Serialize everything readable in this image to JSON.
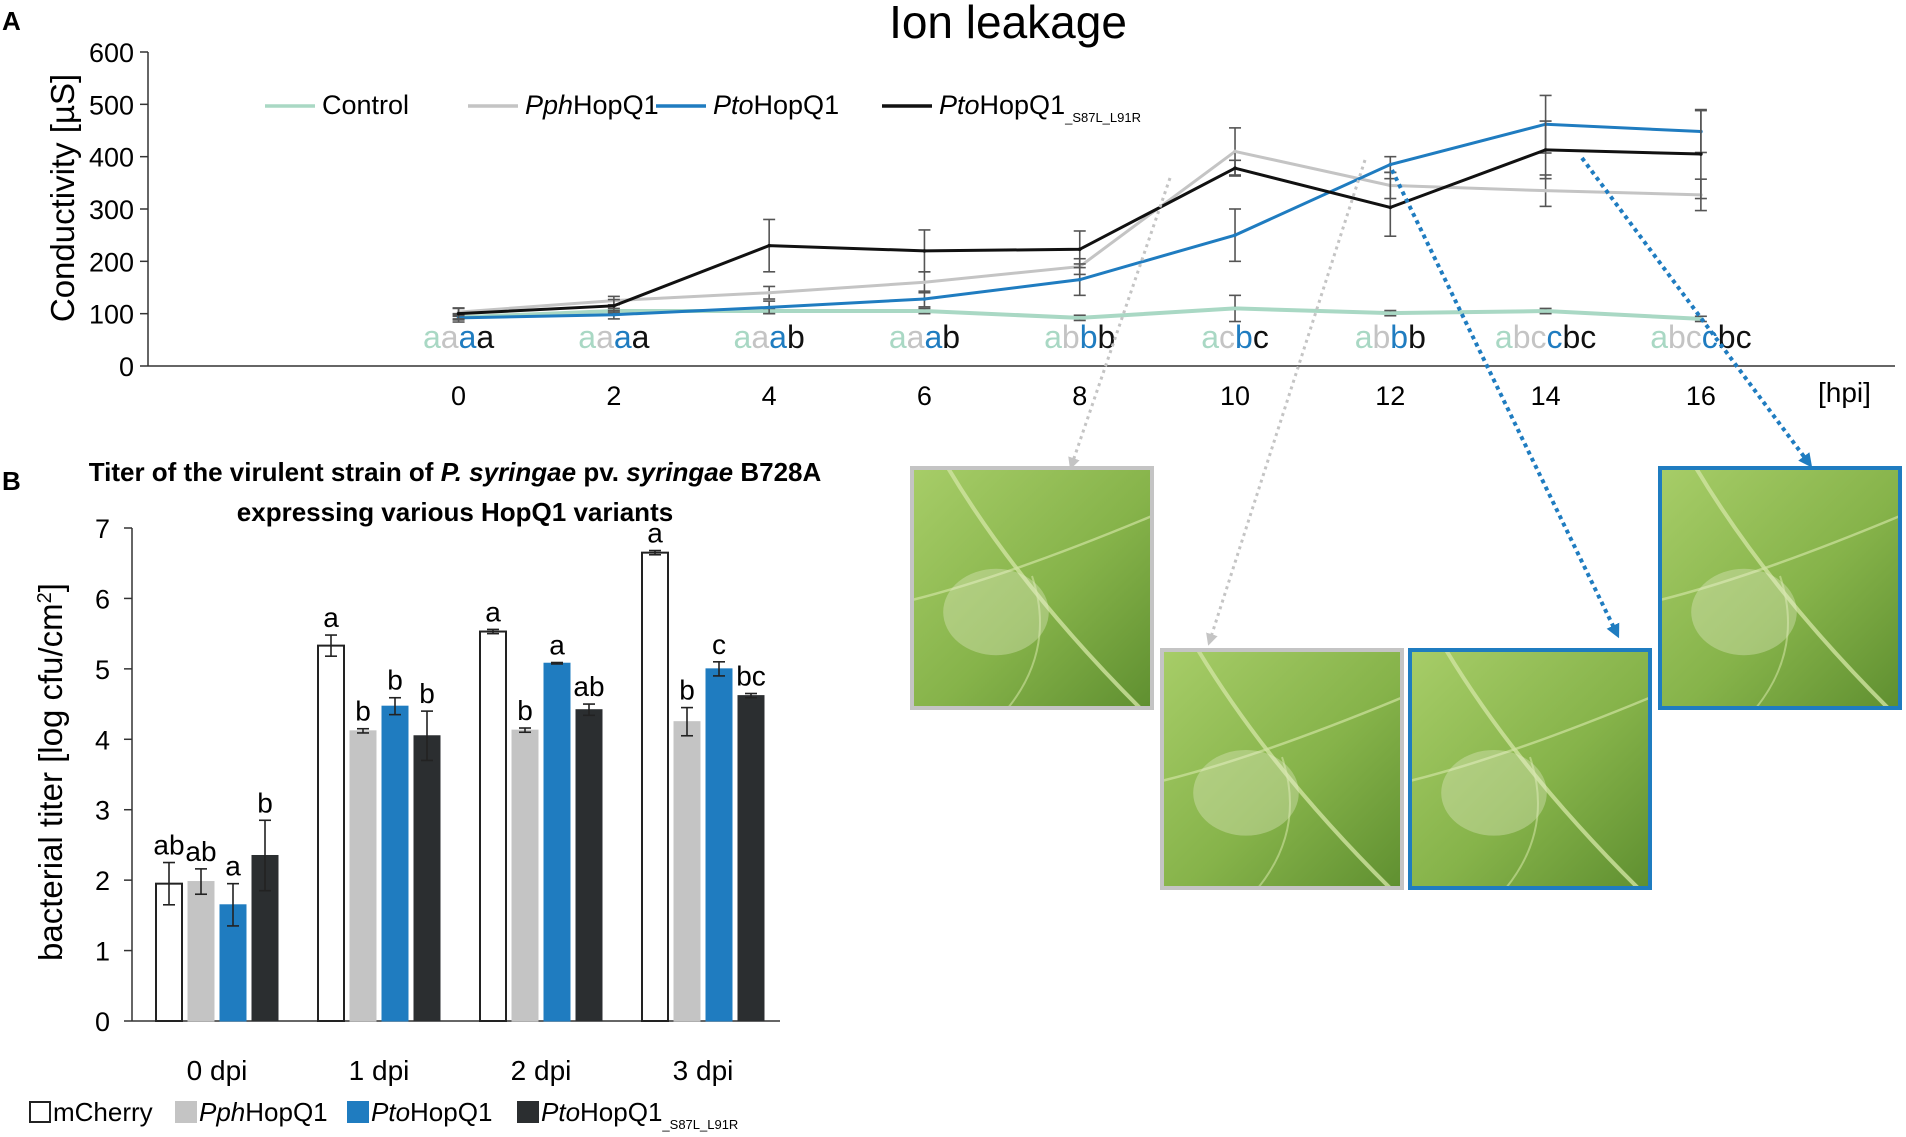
{
  "panel_a": {
    "letter": "A",
    "legend": [
      "Control",
      "PphHopQ1",
      "PtoHopQ1",
      "PtoHopQ1_S87L_L91R"
    ]
  },
  "panel_b": {
    "letter": "B",
    "title_line1": "Titer of the virulent strain of P. syringae pv. syringae B728A",
    "title_line2": "expressing various HopQ1 variants",
    "legend": [
      "mCherry",
      "PphHopQ1",
      "PtoHopQ1",
      "PtoHopQ1_S87L_L91R"
    ]
  },
  "colors": {
    "control": "#a9d8c4",
    "pph": "#c4c4c4",
    "pto": "#1f7cc0",
    "mut": "#111111",
    "mcherry": "#ffffff",
    "mut_bar": "#2b2e30",
    "leaf_light": "#a9cf6e",
    "leaf_dark": "#5d8e2e"
  },
  "photos": [
    {
      "name": "leaf-photo-pph-10hpi",
      "frame": "gray",
      "hpi": 10
    },
    {
      "name": "leaf-photo-pph-12hpi",
      "frame": "gray",
      "hpi": 12
    },
    {
      "name": "leaf-photo-pto-14hpi",
      "frame": "blue",
      "hpi": 14
    },
    {
      "name": "leaf-photo-pto-16hpi",
      "frame": "blue",
      "hpi": 16
    }
  ],
  "chart_data": [
    {
      "type": "line",
      "title": "Ion leakage",
      "xlabel": "[hpi]",
      "ylabel": "Conductivity [µS]",
      "x": [
        0,
        2,
        4,
        6,
        8,
        10,
        12,
        14,
        16
      ],
      "xlim": [
        -4,
        18.5
      ],
      "ylim": [
        0,
        600
      ],
      "yticks": [
        0,
        100,
        200,
        300,
        400,
        500,
        600
      ],
      "grid": false,
      "legend_position": "top",
      "series": [
        {
          "name": "Control",
          "color_key": "control",
          "values": [
            93,
            105,
            105,
            105,
            92,
            110,
            101,
            105,
            90
          ],
          "errors": [
            5,
            5,
            5,
            5,
            5,
            25,
            5,
            5,
            5
          ]
        },
        {
          "name": "PphHopQ1",
          "color_key": "pph",
          "values": [
            103,
            125,
            140,
            160,
            190,
            410,
            345,
            335,
            327
          ],
          "errors": [
            8,
            8,
            12,
            20,
            15,
            45,
            25,
            30,
            30
          ]
        },
        {
          "name": "PtoHopQ1",
          "color_key": "pto",
          "values": [
            92,
            98,
            112,
            128,
            165,
            250,
            385,
            462,
            448
          ],
          "errors": [
            8,
            8,
            12,
            15,
            30,
            50,
            15,
            55,
            40
          ]
        },
        {
          "name": "PtoHopQ1_S87L_L91R",
          "color_key": "mut",
          "values": [
            100,
            115,
            230,
            220,
            223,
            378,
            303,
            413,
            405
          ],
          "errors": [
            10,
            12,
            50,
            40,
            35,
            15,
            55,
            55,
            85
          ]
        }
      ],
      "significance": [
        [
          "a",
          "a",
          "a",
          "a"
        ],
        [
          "a",
          "a",
          "a",
          "a"
        ],
        [
          "a",
          "a",
          "a",
          "b"
        ],
        [
          "a",
          "a",
          "a",
          "b"
        ],
        [
          "a",
          "b",
          "b",
          "b"
        ],
        [
          "a",
          "c",
          "b",
          "c"
        ],
        [
          "a",
          "b",
          "b",
          "b"
        ],
        [
          "a",
          "bc",
          "c",
          "bc"
        ],
        [
          "a",
          "bc",
          "c",
          "bc"
        ]
      ]
    },
    {
      "type": "bar",
      "title": "Titer of the virulent strain of P. syringae pv. syringae B728A expressing various HopQ1 variants",
      "xlabel": "",
      "ylabel": "bacterial titer [log cfu/cm²]",
      "categories": [
        "0 dpi",
        "1 dpi",
        "2 dpi",
        "3 dpi"
      ],
      "ylim": [
        0,
        7
      ],
      "yticks": [
        0,
        1,
        2,
        3,
        4,
        5,
        6,
        7
      ],
      "grid": false,
      "legend_position": "bottom",
      "series": [
        {
          "name": "mCherry",
          "color_key": "mcherry",
          "values": [
            1.95,
            5.33,
            5.53,
            6.65
          ],
          "errors": [
            0.3,
            0.15,
            0.03,
            0.03
          ],
          "labels": [
            "ab",
            "a",
            "a",
            "a"
          ]
        },
        {
          "name": "PphHopQ1",
          "color_key": "pph",
          "values": [
            1.98,
            4.12,
            4.13,
            4.25
          ],
          "errors": [
            0.18,
            0.03,
            0.03,
            0.2
          ],
          "labels": [
            "ab",
            "b",
            "b",
            "b"
          ]
        },
        {
          "name": "PtoHopQ1",
          "color_key": "pto",
          "values": [
            1.65,
            4.47,
            5.08,
            5.0
          ],
          "errors": [
            0.3,
            0.12,
            0.01,
            0.1
          ],
          "labels": [
            "a",
            "b",
            "a",
            "c"
          ]
        },
        {
          "name": "PtoHopQ1_S87L_L91R",
          "color_key": "mut_bar",
          "values": [
            2.35,
            4.05,
            4.42,
            4.62
          ],
          "errors": [
            0.5,
            0.35,
            0.08,
            0.03
          ],
          "labels": [
            "b",
            "b",
            "ab",
            "bc"
          ]
        }
      ]
    }
  ]
}
